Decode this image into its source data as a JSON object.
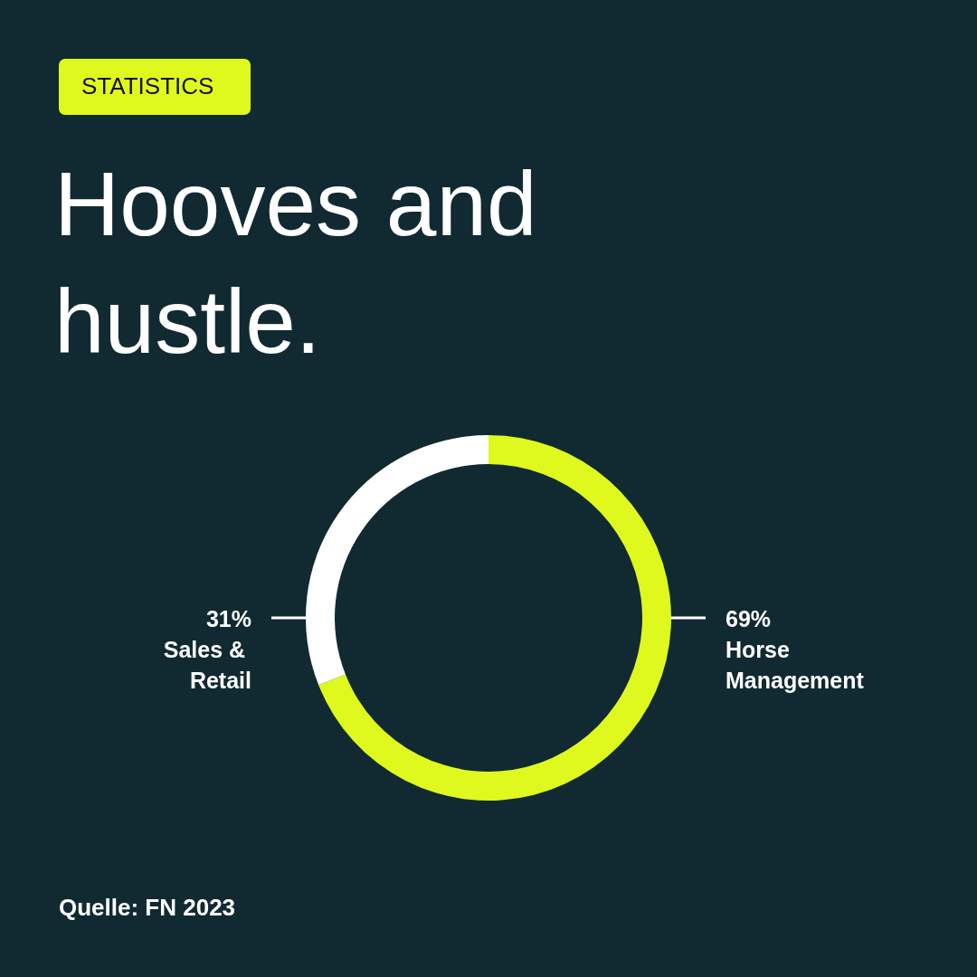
{
  "chart_data": {
    "type": "donut",
    "subtitle": "STATISTICS",
    "title": "Hooves and hustle.",
    "categories": [
      "Horse Management",
      "Sales & Retail"
    ],
    "values": [
      69,
      31
    ],
    "colors": [
      "#dff91e",
      "#ffffff"
    ],
    "value_labels": [
      "69%",
      "31%"
    ],
    "annotations": [
      "Quelle: FN 2023"
    ],
    "legend": false
  }
}
